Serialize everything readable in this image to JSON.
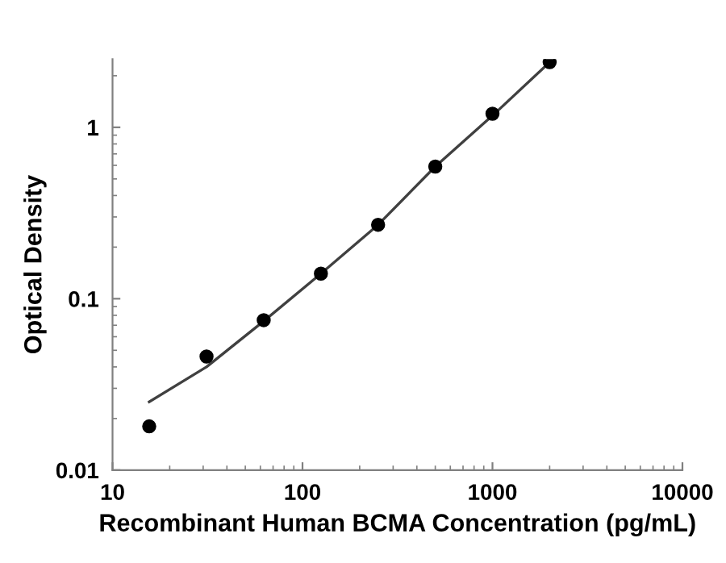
{
  "chart_data": {
    "type": "scatter",
    "xlabel": "Recombinant Human BCMA Concentration (pg/mL)",
    "ylabel": "Optical Density",
    "log": "xy",
    "x": [
      15.6,
      31.25,
      62.5,
      125,
      250,
      500,
      1000,
      2000
    ],
    "series": [
      {
        "marker": "circle",
        "color": "#000000",
        "values": [
          0.018,
          0.046,
          0.075,
          0.14,
          0.27,
          0.59,
          1.2,
          2.4
        ]
      },
      {
        "type": "line",
        "marker": "none",
        "color": "#404040",
        "x": [
          15.6,
          31.25,
          62.5,
          125,
          250,
          500,
          1000,
          2000
        ],
        "values": [
          0.025,
          0.04,
          0.074,
          0.14,
          0.27,
          0.59,
          1.17,
          2.4
        ]
      }
    ],
    "xlim": [
      10,
      10000
    ],
    "ylim": [
      0.01,
      2.5
    ],
    "xticks": [
      10,
      100,
      1000,
      10000
    ],
    "yticks": [
      0.01,
      0.1,
      1
    ],
    "grid": false,
    "legend": false
  }
}
